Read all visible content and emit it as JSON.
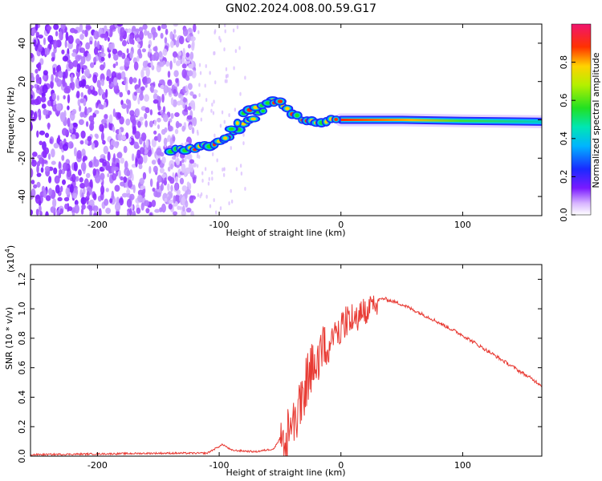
{
  "figure_title": "GN02.2024.008.00.59.G17",
  "colors": {
    "snr_line": "#e83a33",
    "spectrogram_core": "#ff2a00",
    "scatter": "#7a1aff"
  },
  "chart_data": [
    {
      "type": "heatmap",
      "title": "",
      "xlabel": "Height of straight line (km)",
      "ylabel": "Frequency (Hz)",
      "xlim": [
        -255,
        165
      ],
      "ylim": [
        -50,
        50
      ],
      "xticks": [
        -200,
        -100,
        0,
        100
      ],
      "yticks": [
        -40,
        -20,
        0,
        20,
        40
      ],
      "colorbar": {
        "label": "Normalized spectral amplitude",
        "range": [
          0,
          1
        ],
        "ticks": [
          "0.0",
          "0.2",
          "0.4",
          "0.6",
          "0.8"
        ],
        "colormap": "white-purple-blue-cyan-green-yellow-red-magenta"
      },
      "ridge": [
        {
          "x": -140,
          "y": -16
        },
        {
          "x": -120,
          "y": -15
        },
        {
          "x": -100,
          "y": -12
        },
        {
          "x": -80,
          "y": -3
        },
        {
          "x": -65,
          "y": 5
        },
        {
          "x": -55,
          "y": 10
        },
        {
          "x": -45,
          "y": 6
        },
        {
          "x": -35,
          "y": 1
        },
        {
          "x": -20,
          "y": -1
        },
        {
          "x": 0,
          "y": 0
        },
        {
          "x": 50,
          "y": 0
        },
        {
          "x": 100,
          "y": -0.5
        },
        {
          "x": 165,
          "y": -1
        }
      ],
      "ridge_branch": [
        {
          "x": -95,
          "y": -10
        },
        {
          "x": -80,
          "y": 3
        },
        {
          "x": -60,
          "y": 8
        },
        {
          "x": -48,
          "y": 10
        }
      ],
      "noise_region": {
        "xmin": -255,
        "xmax": -120
      }
    },
    {
      "type": "line",
      "title": "",
      "xlabel": "Height of straight line (km)",
      "ylabel": "SNR (10 * v/v)",
      "y_multiplier": "(x10",
      "y_multiplier_exp": "4",
      "y_multiplier_close": ")",
      "xlim": [
        -255,
        165
      ],
      "ylim": [
        0,
        1.3
      ],
      "xticks": [
        -200,
        -100,
        0,
        100
      ],
      "yticks": [
        "0.0",
        "0.2",
        "0.4",
        "0.6",
        "0.8",
        "1.0",
        "1.2"
      ],
      "series": [
        {
          "points": [
            {
              "x": -255,
              "y": 0.01
            },
            {
              "x": -200,
              "y": 0.015
            },
            {
              "x": -150,
              "y": 0.02
            },
            {
              "x": -110,
              "y": 0.02
            },
            {
              "x": -97,
              "y": 0.08
            },
            {
              "x": -90,
              "y": 0.04
            },
            {
              "x": -70,
              "y": 0.03
            },
            {
              "x": -55,
              "y": 0.05
            },
            {
              "x": -45,
              "y": 0.2
            },
            {
              "x": -35,
              "y": 0.45
            },
            {
              "x": -25,
              "y": 0.65
            },
            {
              "x": -15,
              "y": 0.8
            },
            {
              "x": -5,
              "y": 0.9
            },
            {
              "x": 5,
              "y": 0.97
            },
            {
              "x": 20,
              "y": 1.03
            },
            {
              "x": 35,
              "y": 1.07
            },
            {
              "x": 50,
              "y": 1.03
            },
            {
              "x": 75,
              "y": 0.93
            },
            {
              "x": 100,
              "y": 0.82
            },
            {
              "x": 125,
              "y": 0.69
            },
            {
              "x": 150,
              "y": 0.56
            },
            {
              "x": 165,
              "y": 0.48
            }
          ]
        }
      ]
    }
  ]
}
